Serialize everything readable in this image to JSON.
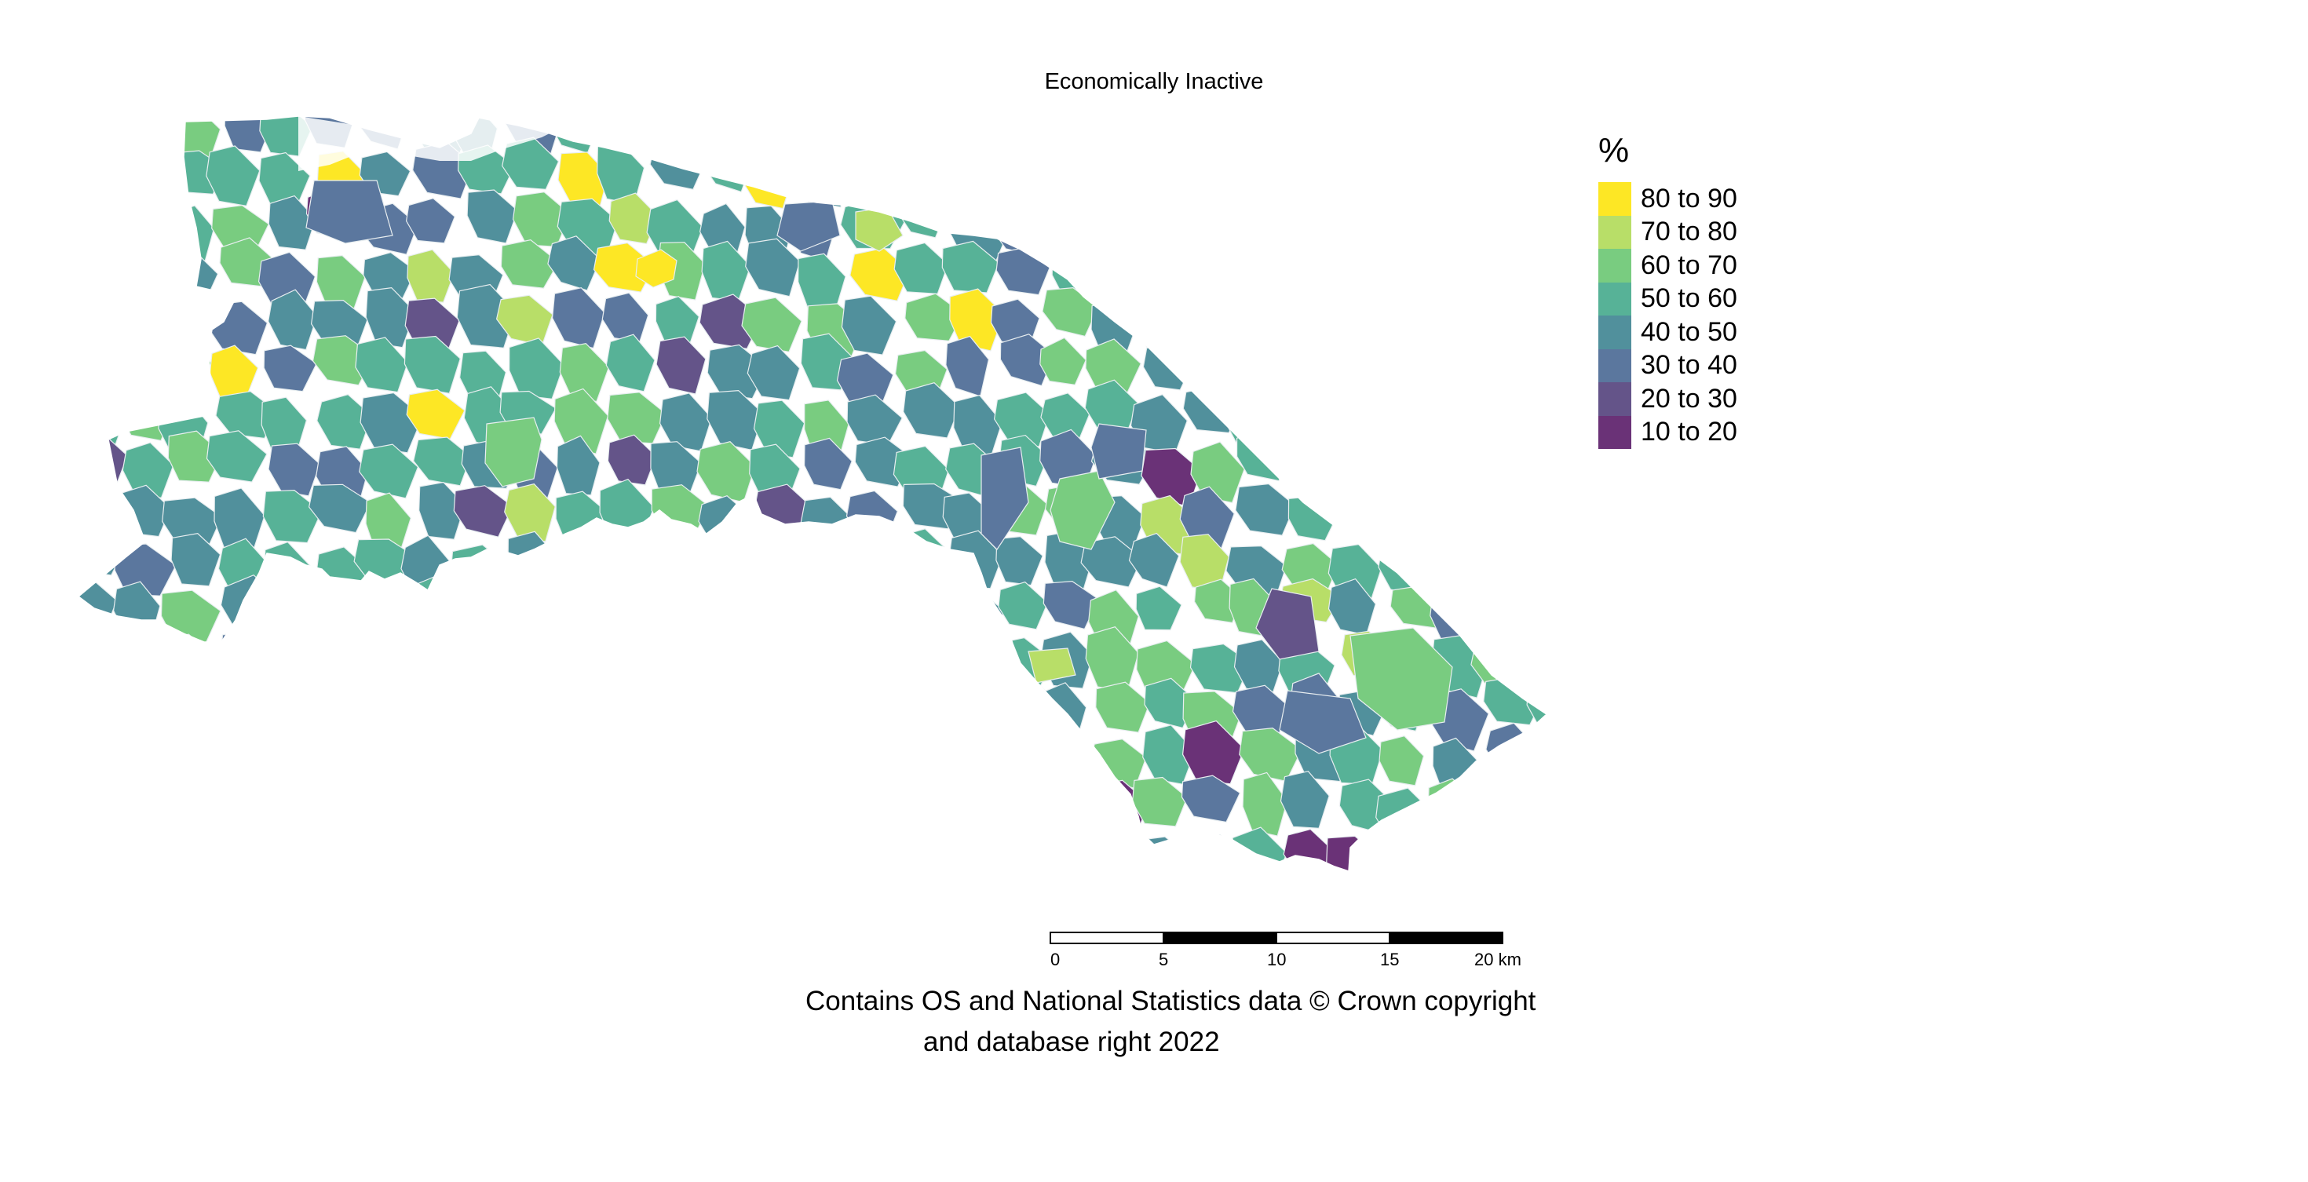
{
  "map": {
    "title": "Economically Inactive"
  },
  "legend": {
    "title": "%",
    "items": [
      {
        "label": "80 to 90",
        "color": "#FDE725"
      },
      {
        "label": "70 to 80",
        "color": "#B8DE68"
      },
      {
        "label": "60 to 70",
        "color": "#79CC80"
      },
      {
        "label": "50 to 60",
        "color": "#57B297"
      },
      {
        "label": "40 to 50",
        "color": "#51909C"
      },
      {
        "label": "30 to 40",
        "color": "#5B779E"
      },
      {
        "label": "20 to 30",
        "color": "#645489"
      },
      {
        "label": "10 to 20",
        "color": "#6A3277"
      }
    ]
  },
  "scalebar": {
    "ticks": [
      "0",
      "5",
      "10",
      "15",
      "20 km"
    ]
  },
  "attribution": {
    "line1": "Contains OS and National Statistics data © Crown copyright",
    "line2": "and database right 2022"
  }
}
